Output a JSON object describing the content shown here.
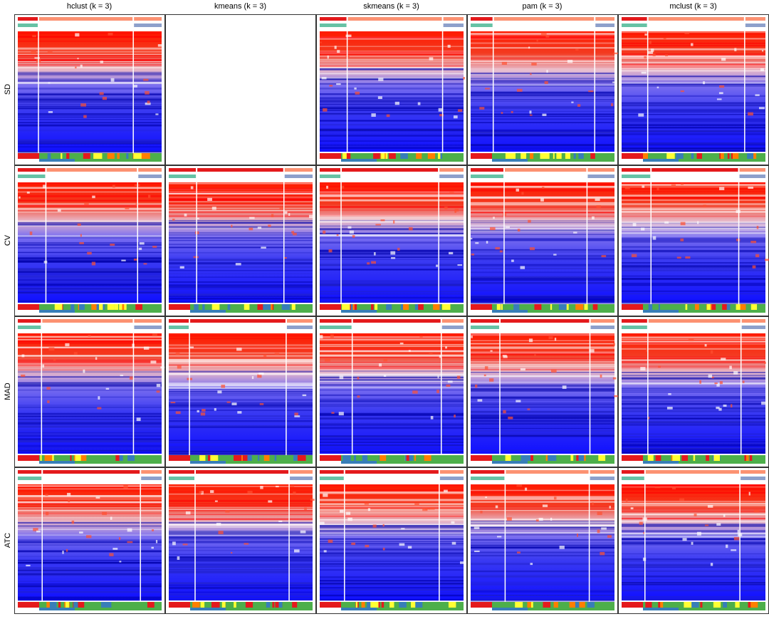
{
  "columns": [
    "hclust (k = 3)",
    "kmeans (k = 3)",
    "skmeans (k = 3)",
    "pam (k = 3)",
    "mclust (k = 3)"
  ],
  "rows": [
    "SD",
    "CV",
    "MAD",
    "ATC"
  ],
  "empty_panels": [
    [
      0,
      1
    ]
  ]
}
